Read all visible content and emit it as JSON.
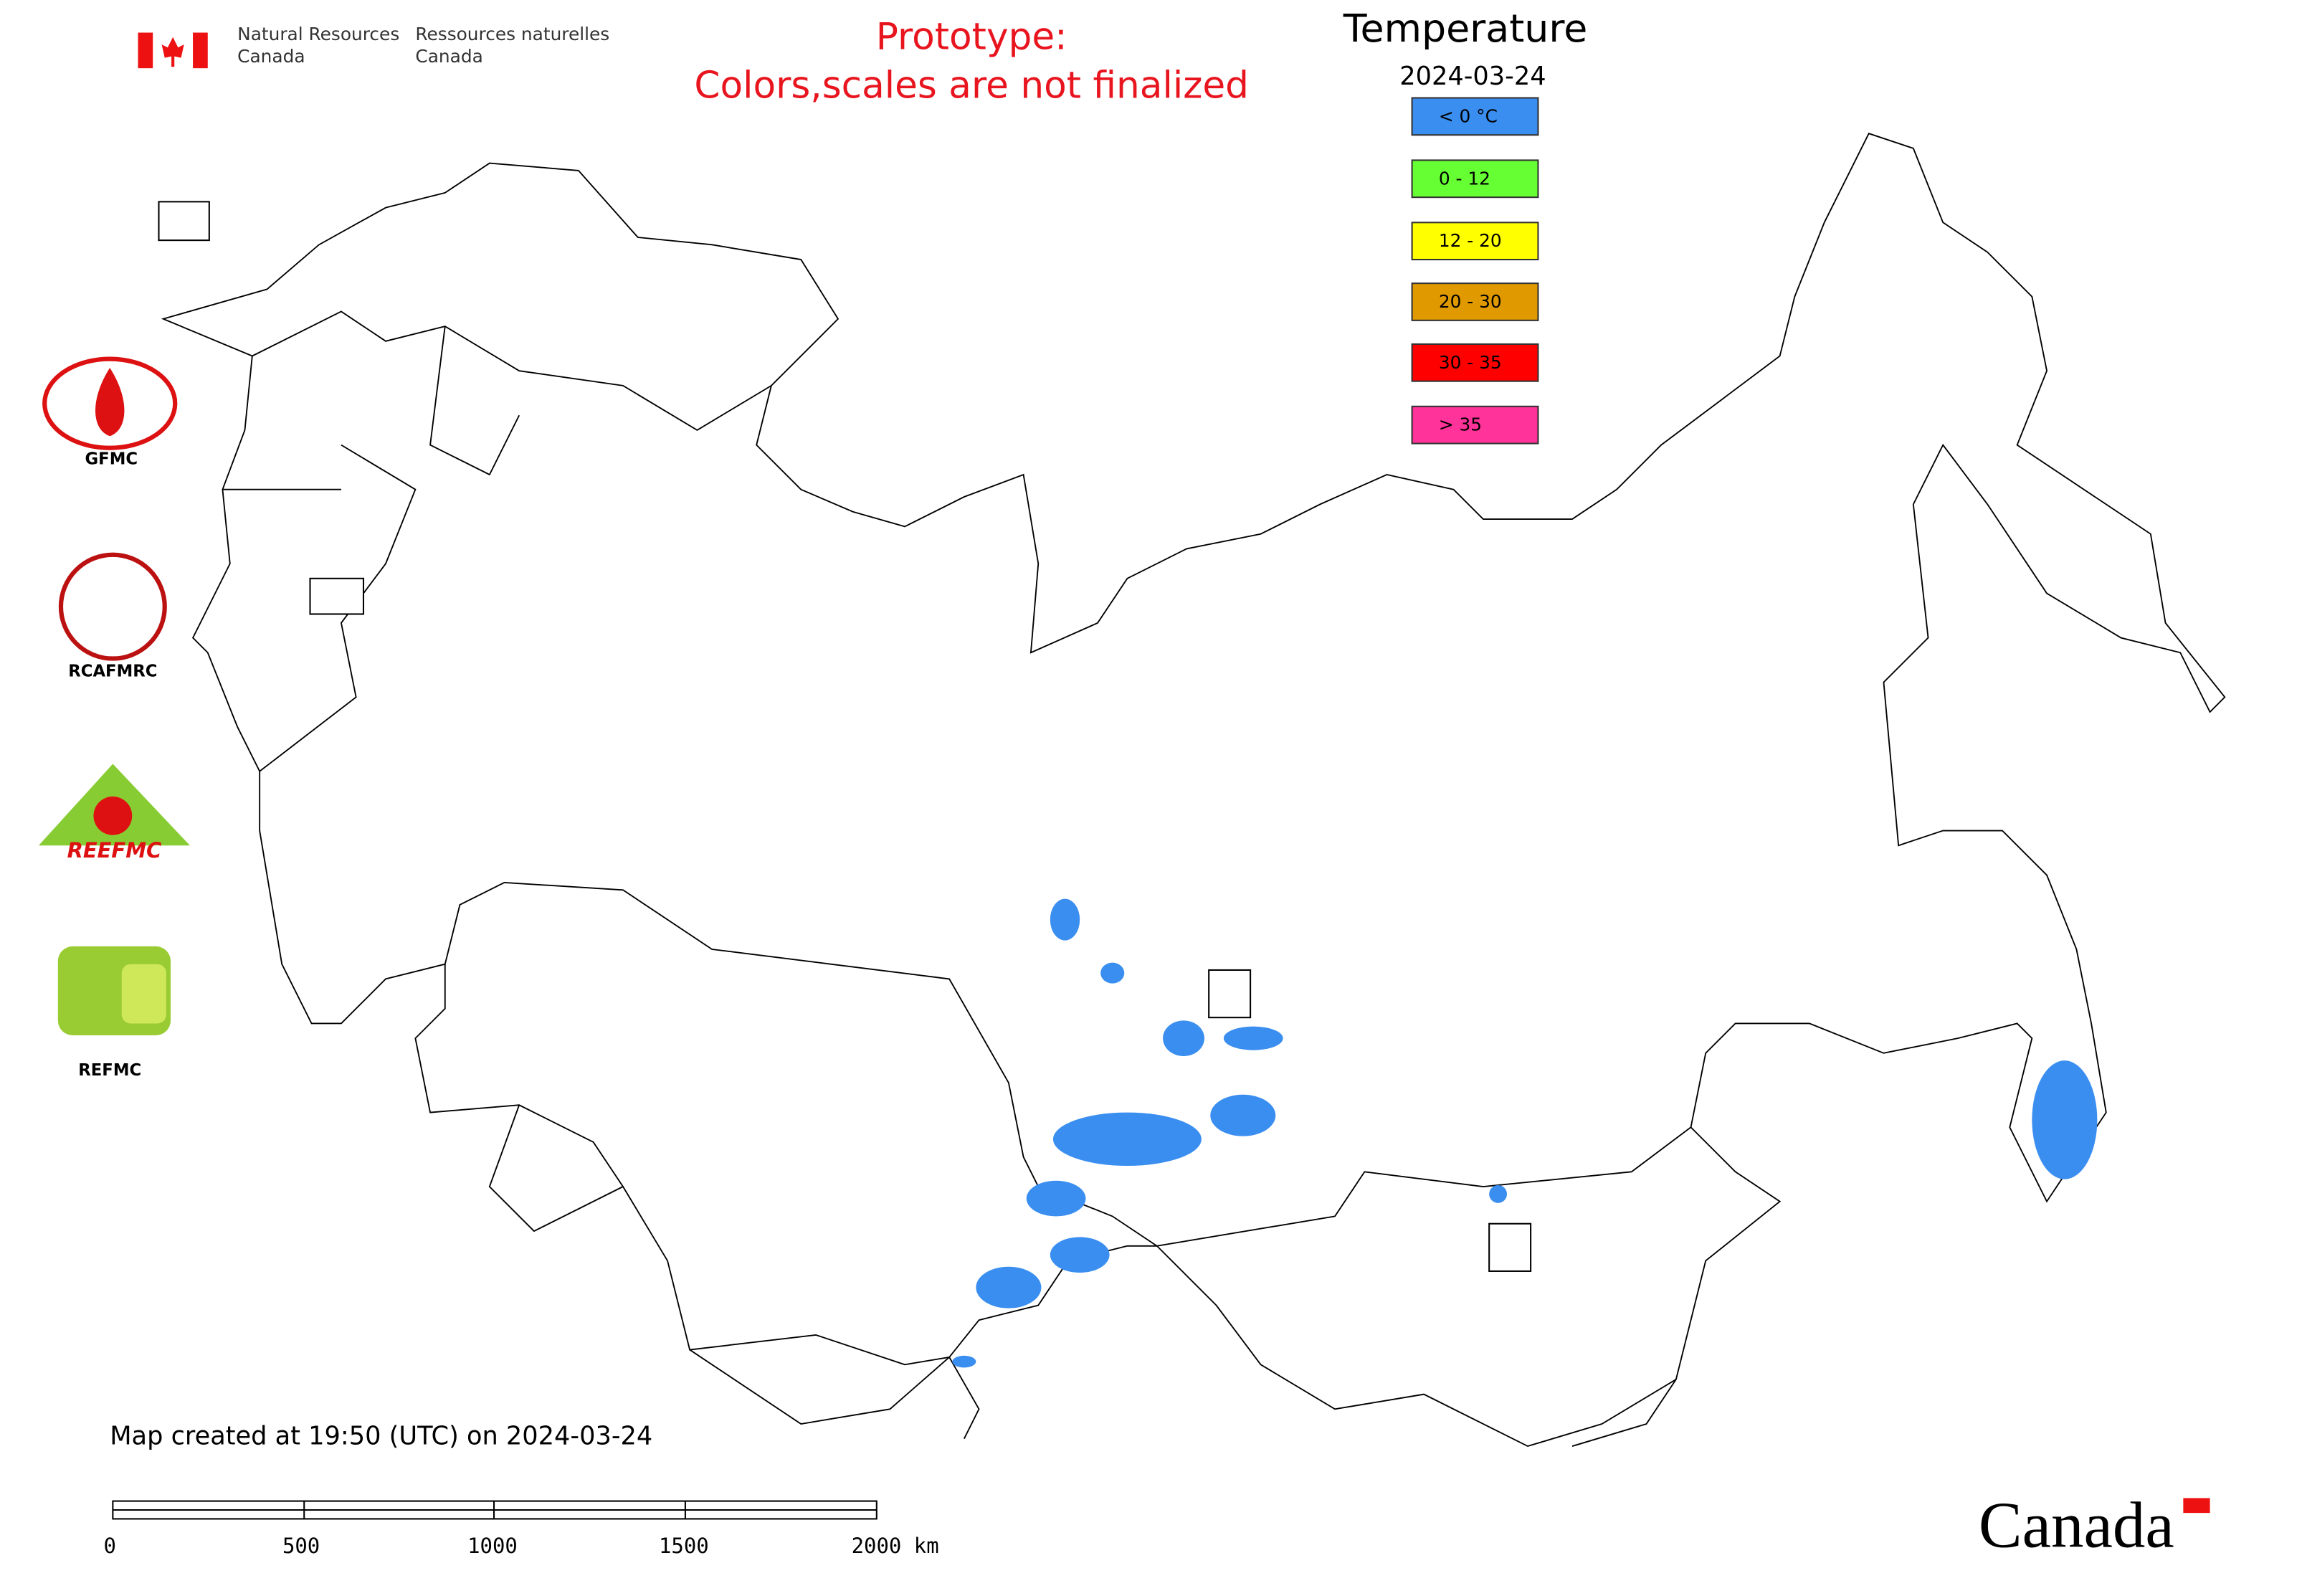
{
  "header": {
    "agency_en": [
      "Natural Resources",
      "Canada"
    ],
    "agency_fr": [
      "Ressources naturelles",
      "Canada"
    ],
    "notice": [
      "Prototype:",
      "Colors,scales are not finalized"
    ]
  },
  "legend": {
    "title": "Temperature",
    "date": "2024-03-24",
    "items": [
      {
        "label": "< 0 °C",
        "color": "#3a8ef0"
      },
      {
        "label": "0 - 12",
        "color": "#66ff33"
      },
      {
        "label": "12 - 20",
        "color": "#ffff00"
      },
      {
        "label": "20 - 30",
        "color": "#e09a00"
      },
      {
        "label": "30 - 35",
        "color": "#ff0000"
      },
      {
        "label": "> 35",
        "color": "#ff3399"
      }
    ]
  },
  "logos": [
    "GFMC",
    "RCAFMRC",
    "REEFMC",
    "REFMC"
  ],
  "footer": {
    "created": "Map created at 19:50 (UTC) on 2024-03-24",
    "scale": [
      "0",
      "500",
      "1000",
      "1500",
      "2000 km"
    ],
    "wordmark": "Canada"
  }
}
